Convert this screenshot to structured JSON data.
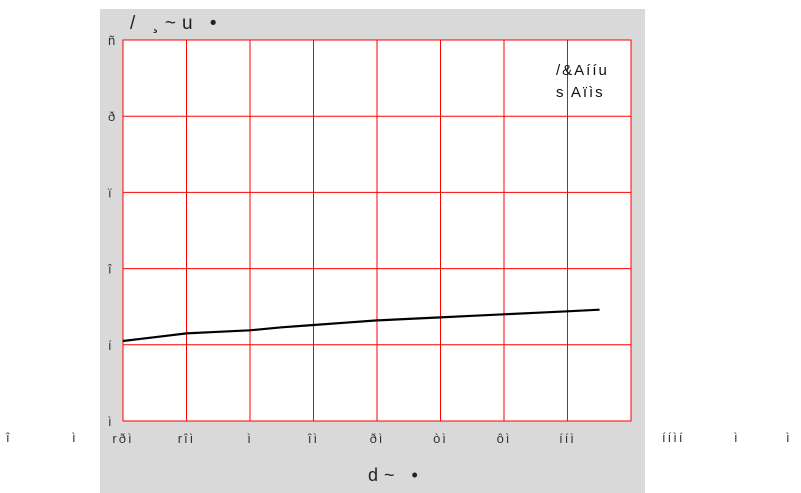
{
  "chart_data": {
    "type": "line",
    "title": "/ ¸~u •",
    "xlabel": "d~ •",
    "ylabel": "",
    "legend": {
      "placement": "top-right",
      "lines": [
        "/&Aííu",
        "s Aïìs"
      ]
    },
    "x_ticks": [
      "rðì",
      "rîì",
      "ì",
      "îì",
      "ðì",
      "òì",
      "ôì",
      "ííì"
    ],
    "y_ticks": [
      "ì",
      "í",
      "î",
      "ï",
      "ð",
      "ñ"
    ],
    "outside_labels": {
      "left": [
        "î",
        "ì"
      ],
      "right": [
        "ííìí",
        "ì",
        "ì"
      ]
    },
    "grid": true,
    "grid_color": "#ff0000",
    "line_color": "#000000",
    "xlim": [
      0,
      8
    ],
    "ylim": [
      0,
      5
    ],
    "series": [
      {
        "x": [
          0,
          0.5,
          1,
          1.5,
          2,
          2.5,
          3,
          3.5,
          4,
          4.5,
          5,
          5.5,
          6,
          6.5,
          7,
          7.5
        ],
        "values": [
          1.05,
          1.1,
          1.15,
          1.17,
          1.19,
          1.23,
          1.26,
          1.29,
          1.32,
          1.34,
          1.36,
          1.38,
          1.4,
          1.42,
          1.44,
          1.46
        ]
      }
    ]
  }
}
